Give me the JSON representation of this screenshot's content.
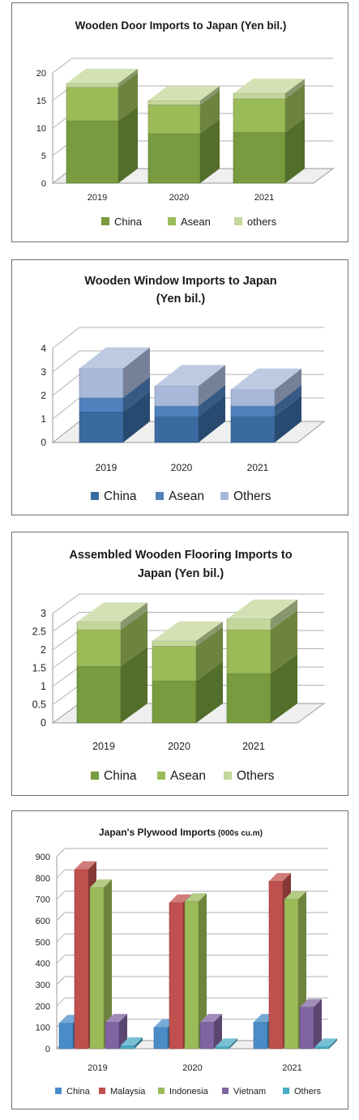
{
  "chart_data": [
    {
      "type": "bar",
      "stacked": true,
      "title_lines": [
        "Wooden Door Imports to Japan  (Yen bil.)"
      ],
      "categories": [
        "2019",
        "2020",
        "2021"
      ],
      "ylim": [
        0,
        20
      ],
      "yticks": [
        "0",
        "5",
        "10",
        "15",
        "20"
      ],
      "series": [
        {
          "name": "China",
          "values": [
            11.3,
            9.0,
            9.2
          ]
        },
        {
          "name": "Asean",
          "values": [
            6.1,
            5.2,
            6.1
          ]
        },
        {
          "name": "others",
          "values": [
            0.7,
            0.8,
            1.0
          ]
        }
      ],
      "colors": {
        "China": "#779b3e",
        "Asean": "#9bbb59",
        "others": "#c4d79b"
      },
      "legend": "bottom",
      "grid": true
    },
    {
      "type": "bar",
      "stacked": true,
      "title_lines": [
        "Wooden Window Imports to Japan",
        "(Yen bil.)"
      ],
      "categories": [
        "2019",
        "2020",
        "2021"
      ],
      "ylim": [
        0,
        4
      ],
      "yticks": [
        "0",
        "1",
        "2",
        "3",
        "4"
      ],
      "series": [
        {
          "name": "China",
          "values": [
            1.3,
            1.1,
            1.1
          ]
        },
        {
          "name": "Asean",
          "values": [
            0.6,
            0.45,
            0.45
          ]
        },
        {
          "name": "Others",
          "values": [
            1.25,
            0.85,
            0.7
          ]
        }
      ],
      "colors": {
        "China": "#3b6aa0",
        "Asean": "#4f81bd",
        "Others": "#a8b8d8"
      },
      "legend": "bottom",
      "grid": true
    },
    {
      "type": "bar",
      "stacked": true,
      "title_lines": [
        "Assembled Wooden Flooring Imports to",
        "Japan (Yen bil.)"
      ],
      "categories": [
        "2019",
        "2020",
        "2021"
      ],
      "ylim": [
        0,
        3
      ],
      "yticks": [
        "0",
        "0.5",
        "1",
        "1.5",
        "2",
        "2.5",
        "3"
      ],
      "series": [
        {
          "name": "China",
          "values": [
            1.55,
            1.15,
            1.35
          ]
        },
        {
          "name": "Asean",
          "values": [
            1.0,
            0.95,
            1.2
          ]
        },
        {
          "name": "Others",
          "values": [
            0.22,
            0.15,
            0.3
          ]
        }
      ],
      "colors": {
        "China": "#779b3e",
        "Asean": "#9bbb59",
        "Others": "#c4d79b"
      },
      "legend": "bottom",
      "grid": true
    },
    {
      "type": "bar",
      "stacked": false,
      "title_lines": [
        "Japan's Plywood Imports"
      ],
      "title_suffix": "(000s cu.m)",
      "categories": [
        "2019",
        "2020",
        "2021"
      ],
      "ylim": [
        0,
        900
      ],
      "yticks": [
        "0",
        "100",
        "200",
        "300",
        "400",
        "500",
        "600",
        "700",
        "800",
        "900"
      ],
      "series": [
        {
          "name": "China",
          "values": [
            120,
            100,
            125
          ]
        },
        {
          "name": "Malaysia",
          "values": [
            840,
            685,
            785
          ]
        },
        {
          "name": "Indonesia",
          "values": [
            755,
            690,
            700
          ]
        },
        {
          "name": "Vietnam",
          "values": [
            125,
            125,
            195
          ]
        },
        {
          "name": "Others",
          "values": [
            15,
            10,
            10
          ]
        }
      ],
      "colors": {
        "China": "#4a8cc8",
        "Malaysia": "#c0504d",
        "Indonesia": "#9bbb59",
        "Vietnam": "#8064a2",
        "Others": "#4bacc6"
      },
      "legend": "bottom",
      "grid": true
    }
  ]
}
